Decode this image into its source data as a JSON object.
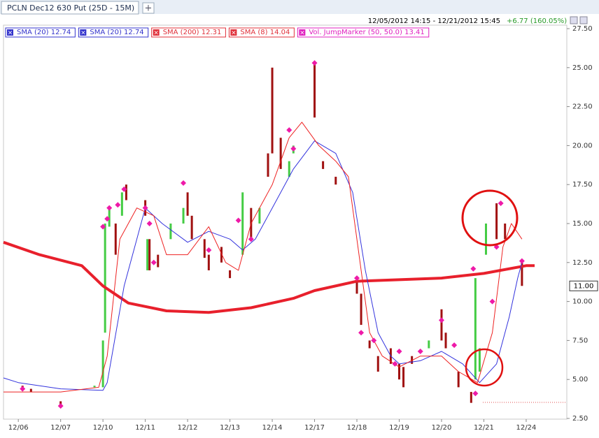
{
  "chart_data": {
    "type": "candlestick",
    "tab_title": "PCLN Dec12 630 Put (25D - 15M)",
    "range_text": "12/05/2012 14:15 - 12/21/2012 15:45",
    "change_text": "+6.77 (160.05%)",
    "last_price": {
      "value": 11,
      "label": "11.00"
    },
    "legend": [
      {
        "label": "SMA (20) 12.74",
        "color": "#3333cc"
      },
      {
        "label": "SMA (20) 12.74",
        "color": "#3333cc"
      },
      {
        "label": "SMA (200) 12.31",
        "color": "#e0303a"
      },
      {
        "label": "SMA (8) 14.04",
        "color": "#e0303a"
      },
      {
        "label": "Vol. JumpMarker (50, 50.0) 13.41",
        "color": "#e020c0"
      }
    ],
    "ylim": [
      2.5,
      27.5
    ],
    "yticks": [
      {
        "value": 2.5,
        "label": "2.50"
      },
      {
        "value": 5,
        "label": "5.00"
      },
      {
        "value": 7.5,
        "label": "7.50"
      },
      {
        "value": 10,
        "label": "10.00"
      },
      {
        "value": 12.5,
        "label": "12.50"
      },
      {
        "value": 15,
        "label": "15.00"
      },
      {
        "value": 17.5,
        "label": "17.50"
      },
      {
        "value": 20,
        "label": "20.00"
      },
      {
        "value": 22.5,
        "label": "22.50"
      },
      {
        "value": 25,
        "label": "25.00"
      },
      {
        "value": 27.5,
        "label": "27.50"
      }
    ],
    "xlim": [
      -0.35,
      12.96
    ],
    "xticks": [
      {
        "value": 0,
        "label": "12/06"
      },
      {
        "value": 1,
        "label": "12/07"
      },
      {
        "value": 2,
        "label": "12/10"
      },
      {
        "value": 3,
        "label": "12/11"
      },
      {
        "value": 4,
        "label": "12/12"
      },
      {
        "value": 5,
        "label": "12/13"
      },
      {
        "value": 6,
        "label": "12/14"
      },
      {
        "value": 7,
        "label": "12/17"
      },
      {
        "value": 8,
        "label": "12/18"
      },
      {
        "value": 9,
        "label": "12/19"
      },
      {
        "value": 10,
        "label": "12/20"
      },
      {
        "value": 11,
        "label": "12/21"
      },
      {
        "value": 12,
        "label": "12/24"
      }
    ],
    "lines": [
      {
        "name": "SMA (200)",
        "color": "#e8202c",
        "width": 4,
        "x": [
          -0.35,
          0.5,
          1.5,
          2.0,
          2.6,
          3.5,
          4.5,
          5.5,
          6.5,
          7.0,
          8.0,
          9.0,
          10.0,
          11.0,
          12.0,
          12.2
        ],
        "values": [
          13.8,
          13.0,
          12.3,
          11.0,
          9.9,
          9.4,
          9.3,
          9.6,
          10.2,
          10.7,
          11.3,
          11.4,
          11.5,
          11.8,
          12.3,
          12.3
        ]
      },
      {
        "name": "SMA (20)",
        "color": "#3333dd",
        "width": 1,
        "x": [
          -0.35,
          0,
          1,
          2,
          2.1,
          2.5,
          3,
          3.4,
          4,
          4.5,
          5,
          5.3,
          5.6,
          6,
          6.5,
          7,
          7.5,
          7.9,
          8.2,
          8.5,
          8.8,
          9,
          9.5,
          10,
          10.5,
          10.9,
          11.3,
          11.6,
          11.8,
          11.9
        ],
        "values": [
          5.1,
          4.8,
          4.4,
          4.3,
          4.8,
          11,
          16,
          15,
          13.8,
          14.5,
          14,
          13.3,
          14,
          16,
          18.5,
          20.3,
          19.5,
          17,
          12,
          8,
          6.5,
          6,
          6.2,
          6.8,
          6,
          4.8,
          6,
          9,
          11.5,
          12.5
        ]
      },
      {
        "name": "SMA (8)",
        "color": "#ee2222",
        "width": 1,
        "x": [
          -0.35,
          1,
          1.9,
          2.1,
          2.4,
          2.8,
          3.2,
          3.5,
          4,
          4.5,
          4.9,
          5.2,
          5.5,
          6,
          6.4,
          6.7,
          7.1,
          7.5,
          7.8,
          8,
          8.3,
          8.6,
          9,
          9.5,
          10,
          10.4,
          10.85,
          11.2,
          11.45,
          11.65,
          11.9
        ],
        "values": [
          4.2,
          4.2,
          4.5,
          6.5,
          14,
          16,
          15.5,
          13,
          13,
          14.8,
          12.5,
          12,
          15,
          17.5,
          20.5,
          21.5,
          20,
          19,
          18,
          14,
          8,
          6.5,
          5.8,
          6.5,
          6.5,
          5.5,
          4.8,
          8,
          13.5,
          15,
          14
        ]
      }
    ],
    "candles": {
      "x": [
        0.1,
        0.3,
        1.0,
        1.8,
        2.0,
        2.05,
        2.15,
        2.3,
        2.45,
        2.55,
        3.0,
        3.05,
        3.1,
        3.3,
        3.6,
        3.9,
        4.0,
        4.1,
        4.4,
        4.5,
        4.8,
        5.0,
        5.3,
        5.5,
        5.7,
        5.9,
        6.0,
        6.2,
        6.4,
        6.5,
        7.0,
        7.2,
        7.5,
        8.0,
        8.1,
        8.3,
        8.5,
        8.8,
        9.0,
        9.1,
        9.3,
        9.7,
        10.0,
        10.1,
        10.4,
        10.7,
        10.8,
        10.9,
        11.05,
        11.3,
        11.5,
        11.9
      ],
      "open": [
        4.6,
        4.4,
        3.6,
        4.5,
        4.5,
        8,
        14.8,
        15,
        15.5,
        17.5,
        16.5,
        12,
        14,
        13,
        14,
        15,
        17,
        15.5,
        14,
        13,
        13.5,
        12,
        13,
        16,
        15,
        19.5,
        25,
        20.5,
        18,
        19.5,
        25.3,
        19,
        18,
        11.5,
        10.5,
        7.5,
        6.5,
        7,
        6,
        5.8,
        6.5,
        7,
        9.5,
        8,
        5.5,
        4.2,
        5,
        5.5,
        13,
        16.3,
        15,
        12.5
      ],
      "close": [
        4.3,
        4.2,
        3.3,
        4.6,
        7.5,
        15,
        16,
        13,
        17,
        16.5,
        15.5,
        14,
        12,
        12.2,
        15,
        16,
        15.5,
        14,
        12.8,
        12,
        12.5,
        11.5,
        17,
        14,
        16,
        18,
        19.5,
        18.5,
        19,
        20,
        21.8,
        18.5,
        17.5,
        10.5,
        8.5,
        7,
        5.5,
        6,
        5,
        4.5,
        6,
        7.5,
        7.5,
        7,
        4.5,
        3.5,
        11.5,
        7,
        15,
        14,
        14,
        11
      ]
    },
    "markers": {
      "color": "#ee1aa8",
      "x": [
        0.1,
        1.0,
        2.0,
        2.1,
        2.15,
        2.35,
        2.5,
        3.0,
        3.1,
        3.2,
        3.9,
        4.5,
        5.2,
        5.5,
        6.4,
        6.5,
        7.0,
        8.0,
        8.1,
        8.4,
        8.9,
        9.0,
        9.5,
        10.0,
        10.3,
        10.8,
        10.75,
        11.2,
        11.3,
        11.4,
        11.9
      ],
      "values": [
        4.4,
        3.3,
        14.8,
        15.3,
        16,
        16.2,
        17.2,
        16,
        15,
        12.5,
        17.6,
        13.3,
        15.2,
        14,
        21,
        19.8,
        25.3,
        11.5,
        8,
        7.5,
        6,
        6.8,
        6.8,
        8.8,
        7.2,
        4.1,
        12.1,
        10,
        13.5,
        16.3,
        12.6
      ]
    }
  }
}
